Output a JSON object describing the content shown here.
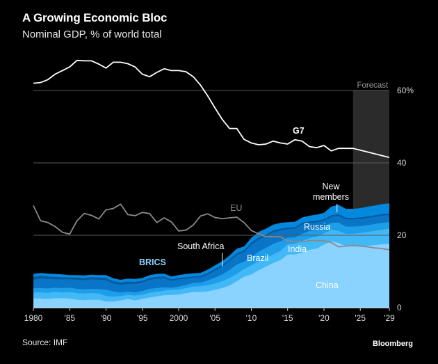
{
  "header": {
    "title": "A Growing Economic Bloc",
    "subtitle": "Nominal GDP, % of world total"
  },
  "footer": {
    "source": "Source: IMF",
    "brand": "Bloomberg"
  },
  "colors": {
    "background": "#000000",
    "g7": "#ffffff",
    "eu": "#8a8a8a",
    "gridline": "#5a5a5a",
    "forecast_band": "#333333",
    "china": "#8ad2ff",
    "india": "#42b8f6",
    "russia": "#1e9ee8",
    "brazil": "#0a74c7",
    "south_africa": "#045a9c",
    "new_members": "#0288dd",
    "brics_label": "#8ad2ff"
  },
  "chart_data": {
    "type": "area",
    "title": "A Growing Economic Bloc",
    "subtitle": "Nominal GDP, % of world total",
    "xlim": [
      1980,
      2029
    ],
    "ylim": [
      0,
      60
    ],
    "y_ticks": [
      0,
      20,
      40,
      60
    ],
    "y_tick_labels": [
      "0",
      "20",
      "40",
      "60%"
    ],
    "x_ticks": [
      1980,
      1985,
      1990,
      1995,
      2000,
      2005,
      2010,
      2015,
      2020,
      2025,
      2029
    ],
    "x_tick_labels": [
      "1980",
      "'85",
      "'90",
      "'95",
      "2000",
      "'05",
      "'10",
      "'15",
      "'20",
      "'25",
      "'29"
    ],
    "grid": "horizontal",
    "forecast": {
      "label": "Forecast",
      "start": 2024,
      "end": 2029
    },
    "x": [
      1980,
      1981,
      1982,
      1983,
      1984,
      1985,
      1986,
      1987,
      1988,
      1989,
      1990,
      1991,
      1992,
      1993,
      1994,
      1995,
      1996,
      1997,
      1998,
      1999,
      2000,
      2001,
      2002,
      2003,
      2004,
      2005,
      2006,
      2007,
      2008,
      2009,
      2010,
      2011,
      2012,
      2013,
      2014,
      2015,
      2016,
      2017,
      2018,
      2019,
      2020,
      2021,
      2022,
      2023,
      2024,
      2025,
      2026,
      2027,
      2028,
      2029
    ],
    "stacked_series": [
      {
        "name": "China",
        "values": [
          2.6,
          2.5,
          2.4,
          2.6,
          2.6,
          2.5,
          2.2,
          2.1,
          2.2,
          2.2,
          1.7,
          1.7,
          2.0,
          2.4,
          2.0,
          2.4,
          2.8,
          3.1,
          3.4,
          3.5,
          3.6,
          4.0,
          4.3,
          4.3,
          4.5,
          4.9,
          5.4,
          6.1,
          7.3,
          8.5,
          9.2,
          10.3,
          11.3,
          12.3,
          13.1,
          14.7,
          14.7,
          15.2,
          16.0,
          16.3,
          17.4,
          18.3,
          17.9,
          17.0,
          16.9,
          17.0,
          17.1,
          17.3,
          17.5,
          17.6
        ]
      },
      {
        "name": "India",
        "values": [
          1.6,
          1.7,
          1.7,
          1.7,
          1.6,
          1.8,
          1.8,
          1.8,
          1.8,
          1.7,
          1.5,
          1.3,
          1.2,
          1.1,
          1.3,
          1.2,
          1.3,
          1.3,
          1.3,
          1.4,
          1.4,
          1.4,
          1.5,
          1.6,
          1.7,
          1.8,
          1.9,
          2.1,
          2.0,
          2.2,
          2.5,
          2.5,
          2.4,
          2.4,
          2.6,
          2.8,
          3.0,
          3.2,
          3.2,
          3.3,
          3.1,
          3.2,
          3.3,
          3.4,
          3.5,
          3.6,
          3.8,
          3.9,
          4.0,
          4.2
        ]
      },
      {
        "name": "Russia",
        "values": [
          1.2,
          1.2,
          1.2,
          1.2,
          1.2,
          1.2,
          1.2,
          1.2,
          1.2,
          1.2,
          1.8,
          1.5,
          1.0,
          0.9,
          0.9,
          1.0,
          1.1,
          1.0,
          0.9,
          0.6,
          0.8,
          0.9,
          1.0,
          1.0,
          1.3,
          1.6,
          1.9,
          2.2,
          2.6,
          2.0,
          2.3,
          2.6,
          2.8,
          2.9,
          2.6,
          1.8,
          1.7,
          2.0,
          2.0,
          1.9,
          1.8,
          1.9,
          2.3,
          2.0,
          2.0,
          1.9,
          1.9,
          1.9,
          1.9,
          1.8
        ]
      },
      {
        "name": "Brazil",
        "values": [
          2.3,
          2.6,
          2.6,
          2.3,
          2.4,
          2.3,
          2.5,
          2.5,
          2.6,
          2.6,
          2.6,
          2.2,
          2.1,
          2.2,
          2.4,
          2.3,
          2.5,
          2.6,
          2.5,
          1.9,
          2.0,
          1.7,
          1.5,
          1.4,
          1.6,
          1.9,
          2.1,
          2.4,
          2.7,
          2.6,
          3.4,
          3.4,
          3.2,
          3.2,
          3.0,
          2.4,
          2.4,
          2.6,
          2.2,
          2.1,
          1.7,
          1.7,
          1.9,
          2.0,
          2.0,
          2.0,
          2.0,
          2.0,
          2.0,
          2.0
        ]
      },
      {
        "name": "South Africa",
        "values": [
          0.8,
          0.8,
          0.7,
          0.7,
          0.6,
          0.5,
          0.6,
          0.6,
          0.6,
          0.6,
          0.6,
          0.6,
          0.6,
          0.6,
          0.5,
          0.5,
          0.5,
          0.5,
          0.5,
          0.4,
          0.4,
          0.4,
          0.3,
          0.4,
          0.5,
          0.5,
          0.5,
          0.5,
          0.5,
          0.5,
          0.6,
          0.6,
          0.5,
          0.5,
          0.5,
          0.4,
          0.4,
          0.4,
          0.4,
          0.4,
          0.4,
          0.4,
          0.4,
          0.4,
          0.4,
          0.4,
          0.4,
          0.4,
          0.4,
          0.4
        ]
      },
      {
        "name": "New members",
        "values": [
          0.8,
          0.8,
          0.8,
          0.8,
          0.8,
          0.7,
          0.7,
          0.7,
          0.7,
          0.7,
          0.8,
          0.8,
          0.8,
          0.8,
          0.8,
          0.8,
          0.8,
          0.8,
          0.8,
          0.8,
          0.8,
          0.9,
          0.9,
          0.9,
          0.9,
          1.0,
          1.0,
          1.1,
          1.2,
          1.1,
          1.3,
          1.5,
          1.6,
          1.6,
          1.6,
          1.5,
          1.5,
          1.5,
          1.6,
          1.7,
          1.8,
          2.4,
          2.6,
          2.5,
          2.5,
          2.6,
          2.7,
          2.7,
          2.8,
          2.8
        ]
      }
    ],
    "lines": [
      {
        "name": "G7",
        "values": [
          62.0,
          62.2,
          63.0,
          64.5,
          65.5,
          66.5,
          68.3,
          68.2,
          68.2,
          67.3,
          66.2,
          67.8,
          67.8,
          67.4,
          66.5,
          64.5,
          63.8,
          65.0,
          66.0,
          65.5,
          65.5,
          65.2,
          63.8,
          61.5,
          58.5,
          55.2,
          52.0,
          49.5,
          49.5,
          46.5,
          45.5,
          45.0,
          45.2,
          46.0,
          45.5,
          45.2,
          46.4,
          46.0,
          44.5,
          44.2,
          44.8,
          43.3,
          44.0,
          44.0,
          44.0,
          43.5,
          43.0,
          42.5,
          42.0,
          41.5
        ]
      },
      {
        "name": "EU",
        "values": [
          28.2,
          24.0,
          23.5,
          22.4,
          20.8,
          20.3,
          24.0,
          26.0,
          25.5,
          24.5,
          27.0,
          27.4,
          28.6,
          25.7,
          25.4,
          26.3,
          26.0,
          23.5,
          24.8,
          23.7,
          21.2,
          21.4,
          22.8,
          25.3,
          25.9,
          24.9,
          24.6,
          24.8,
          25.0,
          23.5,
          21.3,
          20.4,
          19.6,
          19.6,
          19.6,
          18.4,
          18.3,
          18.2,
          18.5,
          18.5,
          18.5,
          18.0,
          16.8,
          17.0,
          17.2,
          17.0,
          16.8,
          16.5,
          16.3,
          16.0
        ]
      }
    ],
    "annotations": [
      "G7",
      "EU",
      "BRICS",
      "South Africa",
      "New members",
      "Brazil",
      "Russia",
      "India",
      "China"
    ]
  }
}
